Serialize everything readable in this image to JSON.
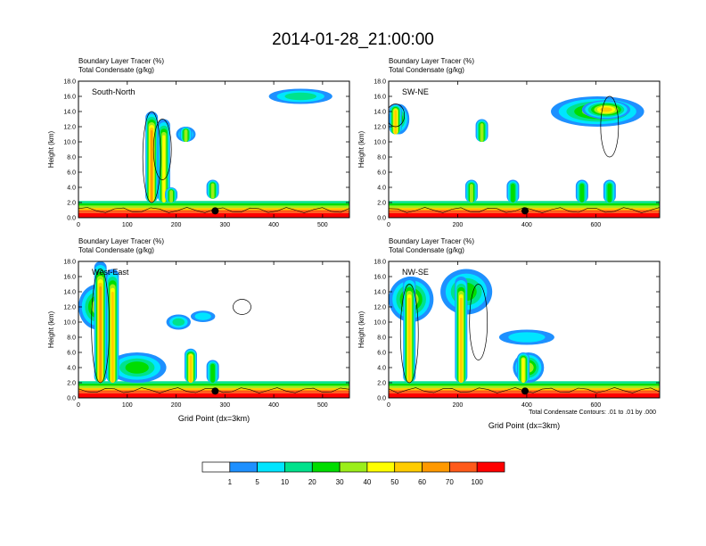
{
  "figure": {
    "title": "2014-01-28_21:00:00",
    "note": "Total Condensate Contours: .01 to .01 by .000"
  },
  "chart_data": {
    "type": "heatmap",
    "panels": [
      {
        "name": "South-North",
        "subtitle1": "Boundary Layer Tracer   (%)",
        "subtitle2": "Total Condensate   (g/kg)",
        "ylabel": "Height (km)",
        "xlabel": "",
        "ylim": [
          0,
          18
        ],
        "xlim": [
          0,
          555
        ],
        "xticks": [
          "0",
          "100",
          "200",
          "300",
          "400",
          "500"
        ],
        "yticks": [
          "0.0",
          "2.0",
          "4.0",
          "6.0",
          "8.0",
          "10.0",
          "12.0",
          "14.0",
          "16.0",
          "18.0"
        ],
        "marker_x": 280,
        "marker_y": 0.9,
        "plumes": [
          {
            "x": 150,
            "base": 2,
            "top": 14,
            "peak": 60
          },
          {
            "x": 175,
            "base": 2,
            "top": 13,
            "peak": 40
          },
          {
            "x": 220,
            "base": 10,
            "top": 12,
            "peak": 30
          },
          {
            "x": 190,
            "base": 2,
            "top": 4,
            "peak": 30
          },
          {
            "x": 275,
            "base": 2.5,
            "top": 5,
            "peak": 30
          }
        ],
        "cloud_patches": [
          {
            "x0": 390,
            "x1": 520,
            "y0": 15,
            "y1": 17,
            "level": 10
          },
          {
            "x0": 200,
            "x1": 240,
            "y0": 10,
            "y1": 12,
            "level": 10
          }
        ],
        "contours": [
          {
            "x": 150,
            "y0": 2,
            "y1": 14
          },
          {
            "x": 172,
            "y0": 5,
            "y1": 13
          }
        ]
      },
      {
        "name": "SW-NE",
        "subtitle1": "Boundary Layer Tracer   (%)",
        "subtitle2": "Total Condensate   (g/kg)",
        "ylabel": "Height (km)",
        "xlabel": "",
        "ylim": [
          0,
          18
        ],
        "xlim": [
          0,
          785
        ],
        "xticks": [
          "0",
          "200",
          "400",
          "600"
        ],
        "yticks": [
          "0.0",
          "2.0",
          "4.0",
          "6.0",
          "8.0",
          "10.0",
          "12.0",
          "14.0",
          "16.0",
          "18.0"
        ],
        "marker_x": 395,
        "marker_y": 0.9,
        "plumes": [
          {
            "x": 20,
            "base": 11,
            "top": 15,
            "peak": 50
          },
          {
            "x": 270,
            "base": 10,
            "top": 13,
            "peak": 30
          },
          {
            "x": 240,
            "base": 2,
            "top": 5,
            "peak": 30
          },
          {
            "x": 360,
            "base": 2,
            "top": 5,
            "peak": 20
          },
          {
            "x": 560,
            "base": 2,
            "top": 5,
            "peak": 20
          },
          {
            "x": 640,
            "base": 2,
            "top": 5,
            "peak": 20
          }
        ],
        "cloud_patches": [
          {
            "x0": 470,
            "x1": 740,
            "y0": 12,
            "y1": 16,
            "level": 30
          },
          {
            "x0": 560,
            "x1": 700,
            "y0": 13,
            "y1": 15.5,
            "level": 50
          },
          {
            "x0": 0,
            "x1": 60,
            "y0": 11,
            "y1": 15,
            "level": 20
          }
        ],
        "contours": [
          {
            "x": 640,
            "y0": 8,
            "y1": 16
          },
          {
            "x": 20,
            "y0": 12,
            "y1": 15
          }
        ]
      },
      {
        "name": "West-East",
        "subtitle1": "Boundary Layer Tracer   (%)",
        "subtitle2": "Total Condensate   (g/kg)",
        "ylabel": "Height (km)",
        "xlabel": "Grid Point (dx=3km)",
        "ylim": [
          0,
          18
        ],
        "xlim": [
          0,
          555
        ],
        "xticks": [
          "0",
          "100",
          "200",
          "300",
          "400",
          "500"
        ],
        "yticks": [
          "0.0",
          "2.0",
          "4.0",
          "6.0",
          "8.0",
          "10.0",
          "12.0",
          "14.0",
          "16.0",
          "18.0"
        ],
        "marker_x": 280,
        "marker_y": 0.9,
        "plumes": [
          {
            "x": 45,
            "base": 2,
            "top": 18,
            "peak": 60
          },
          {
            "x": 70,
            "base": 2,
            "top": 17,
            "peak": 50
          },
          {
            "x": 230,
            "base": 2,
            "top": 6.5,
            "peak": 50
          },
          {
            "x": 275,
            "base": 2,
            "top": 5,
            "peak": 20
          }
        ],
        "cloud_patches": [
          {
            "x0": 0,
            "x1": 80,
            "y0": 9,
            "y1": 15,
            "level": 30
          },
          {
            "x0": 60,
            "x1": 180,
            "y0": 2,
            "y1": 6,
            "level": 20
          },
          {
            "x0": 180,
            "x1": 230,
            "y0": 9,
            "y1": 11,
            "level": 10
          },
          {
            "x0": 230,
            "x1": 280,
            "y0": 10,
            "y1": 11.5,
            "level": 5
          }
        ],
        "contours": [
          {
            "x": 45,
            "y0": 2,
            "y1": 17
          },
          {
            "x": 335,
            "y0": 11,
            "y1": 13
          }
        ]
      },
      {
        "name": "NW-SE",
        "subtitle1": "Boundary Layer Tracer   (%)",
        "subtitle2": "Total Condensate   (g/kg)",
        "ylabel": "Height (km)",
        "xlabel": "Grid Point (dx=3km)",
        "ylim": [
          0,
          18
        ],
        "xlim": [
          0,
          785
        ],
        "xticks": [
          "0",
          "200",
          "400",
          "600"
        ],
        "yticks": [
          "0.0",
          "2.0",
          "4.0",
          "6.0",
          "8.0",
          "10.0",
          "12.0",
          "14.0",
          "16.0",
          "18.0"
        ],
        "marker_x": 395,
        "marker_y": 0.9,
        "plumes": [
          {
            "x": 60,
            "base": 2,
            "top": 16,
            "peak": 50
          },
          {
            "x": 210,
            "base": 2,
            "top": 16,
            "peak": 50
          },
          {
            "x": 390,
            "base": 2,
            "top": 6,
            "peak": 40
          }
        ],
        "cloud_patches": [
          {
            "x0": 0,
            "x1": 130,
            "y0": 10,
            "y1": 16,
            "level": 30
          },
          {
            "x0": 150,
            "x1": 300,
            "y0": 11,
            "y1": 17,
            "level": 20
          },
          {
            "x0": 360,
            "x1": 450,
            "y0": 2,
            "y1": 6,
            "level": 30
          },
          {
            "x0": 320,
            "x1": 480,
            "y0": 7,
            "y1": 9,
            "level": 5
          }
        ],
        "contours": [
          {
            "x": 60,
            "y0": 2,
            "y1": 15
          },
          {
            "x": 260,
            "y0": 5,
            "y1": 15
          }
        ]
      }
    ],
    "colorbar": {
      "levels": [
        "1",
        "5",
        "10",
        "20",
        "30",
        "40",
        "50",
        "60",
        "70",
        "100"
      ],
      "colors": [
        "#ffffff",
        "#1e90ff",
        "#00e5ff",
        "#00e28c",
        "#00dd00",
        "#9bee1a",
        "#ffff00",
        "#ffcc00",
        "#ff9900",
        "#ff5a1a",
        "#ff0000"
      ]
    },
    "colorbar_title": ""
  }
}
